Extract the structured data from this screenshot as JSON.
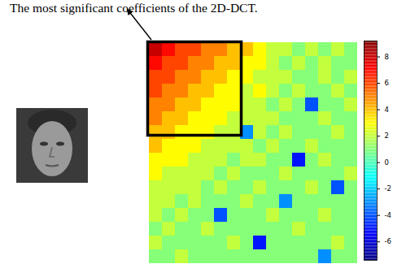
{
  "chart_data": {
    "type": "heatmap",
    "title": "The most significant coefficients of the 2D-DCT.",
    "tick_labels": false,
    "cells": [
      [
        8,
        7,
        6,
        6,
        5,
        5,
        4,
        4,
        3,
        2,
        2,
        1,
        2,
        1,
        2,
        1
      ],
      [
        7,
        6,
        6,
        5,
        5,
        4,
        4,
        3,
        3,
        2,
        1,
        2,
        1,
        2,
        1,
        1
      ],
      [
        6,
        6,
        5,
        5,
        4,
        4,
        3,
        3,
        2,
        2,
        2,
        1,
        1,
        2,
        1,
        2
      ],
      [
        6,
        5,
        5,
        4,
        4,
        3,
        3,
        2,
        3,
        2,
        1,
        2,
        1,
        1,
        2,
        1
      ],
      [
        5,
        5,
        4,
        4,
        3,
        3,
        3,
        2,
        2,
        1,
        2,
        1,
        -4,
        1,
        1,
        2
      ],
      [
        5,
        4,
        4,
        3,
        3,
        3,
        2,
        2,
        2,
        2,
        1,
        1,
        1,
        2,
        1,
        1
      ],
      [
        4,
        4,
        3,
        3,
        3,
        2,
        2,
        -3,
        2,
        1,
        2,
        1,
        1,
        1,
        2,
        1
      ],
      [
        4,
        3,
        3,
        3,
        2,
        2,
        2,
        2,
        1,
        2,
        1,
        1,
        2,
        1,
        1,
        1
      ],
      [
        3,
        3,
        3,
        2,
        2,
        2,
        1,
        2,
        2,
        1,
        1,
        -5,
        1,
        2,
        1,
        1
      ],
      [
        3,
        2,
        2,
        2,
        2,
        1,
        2,
        1,
        1,
        1,
        2,
        1,
        1,
        1,
        1,
        2
      ],
      [
        2,
        2,
        2,
        2,
        1,
        2,
        1,
        1,
        2,
        1,
        1,
        1,
        2,
        1,
        -4,
        1
      ],
      [
        2,
        2,
        1,
        2,
        1,
        1,
        1,
        2,
        1,
        1,
        -3,
        1,
        1,
        1,
        1,
        1
      ],
      [
        2,
        1,
        2,
        1,
        1,
        -4,
        1,
        1,
        1,
        2,
        1,
        1,
        1,
        2,
        1,
        1
      ],
      [
        1,
        2,
        1,
        1,
        2,
        1,
        1,
        1,
        1,
        1,
        1,
        2,
        1,
        1,
        1,
        1
      ],
      [
        2,
        1,
        1,
        1,
        1,
        1,
        2,
        1,
        -5,
        1,
        1,
        1,
        1,
        1,
        2,
        1
      ],
      [
        1,
        1,
        2,
        1,
        1,
        1,
        1,
        1,
        1,
        1,
        1,
        1,
        1,
        -3,
        1,
        1
      ]
    ],
    "colorbar_range": [
      -7.4,
      9.2
    ],
    "colorbar_ticks": [
      -6,
      -4,
      -2,
      0,
      2,
      4,
      6,
      8
    ]
  }
}
